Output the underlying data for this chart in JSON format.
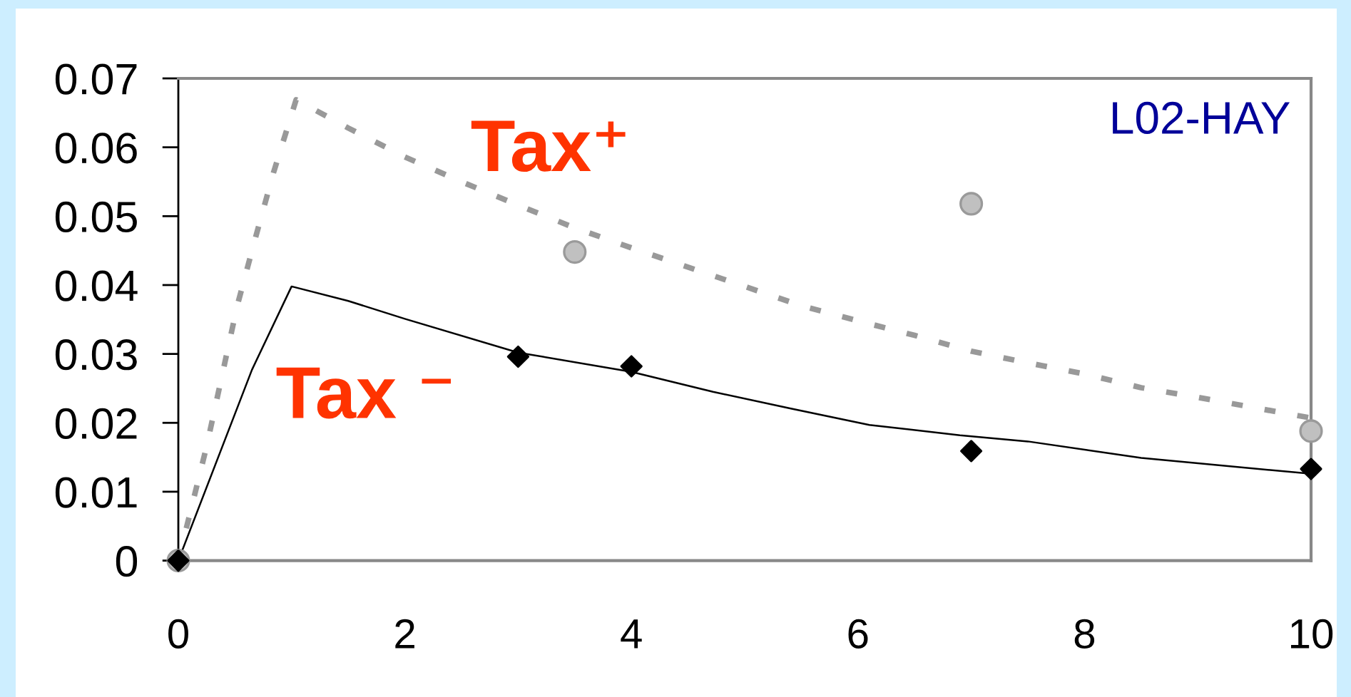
{
  "chart_data": {
    "type": "line",
    "title": "L02-HAY",
    "xlim": [
      0,
      10
    ],
    "xticks": [
      0,
      2,
      4,
      6,
      8,
      10
    ],
    "ylim": [
      0,
      0.07
    ],
    "yticks": [
      0,
      0.01,
      0.02,
      0.03,
      0.04,
      0.05,
      0.06,
      0.07
    ],
    "series": [
      {
        "name": "Tax⁺",
        "color": "#999999",
        "line_style": "dashed",
        "marker": "none",
        "x": [
          0,
          0.25,
          0.52,
          0.69,
          0.84,
          1.04,
          1.5,
          2,
          2.5,
          3,
          3.5,
          4,
          4.5,
          5,
          5.5,
          6,
          6.5,
          7,
          7.5,
          8,
          8.5,
          9,
          9.5,
          10
        ],
        "values": [
          0,
          0.0166,
          0.037,
          0.0474,
          0.0563,
          0.0669,
          0.0628,
          0.0586,
          0.055,
          0.0516,
          0.0483,
          0.0454,
          0.0426,
          0.0398,
          0.037,
          0.0348,
          0.0327,
          0.0304,
          0.0287,
          0.0271,
          0.0251,
          0.0237,
          0.0222,
          0.0207
        ]
      },
      {
        "name": "Tax ⁻",
        "color": "#000000",
        "line_style": "solid",
        "marker": "none",
        "x": [
          0,
          0.65,
          1,
          1.5,
          2,
          3,
          4,
          4.72,
          5.4,
          6.1,
          6.9,
          7.5,
          8.5,
          10
        ],
        "values": [
          0,
          0.0277,
          0.0398,
          0.0377,
          0.0351,
          0.0302,
          0.0274,
          0.0245,
          0.0221,
          0.0197,
          0.0182,
          0.0173,
          0.0149,
          0.0126
        ]
      },
      {
        "type": "scatter",
        "color": "#c0c0c0",
        "marker": "circle",
        "x": [
          0,
          3.5,
          7,
          10
        ],
        "values": [
          0,
          0.0448,
          0.0518,
          0.0188
        ]
      },
      {
        "type": "scatter",
        "color": "#000000",
        "marker": "diamond",
        "x": [
          0,
          3,
          4,
          7,
          10
        ],
        "values": [
          0,
          0.0296,
          0.0282,
          0.0159,
          0.0133
        ]
      }
    ]
  }
}
